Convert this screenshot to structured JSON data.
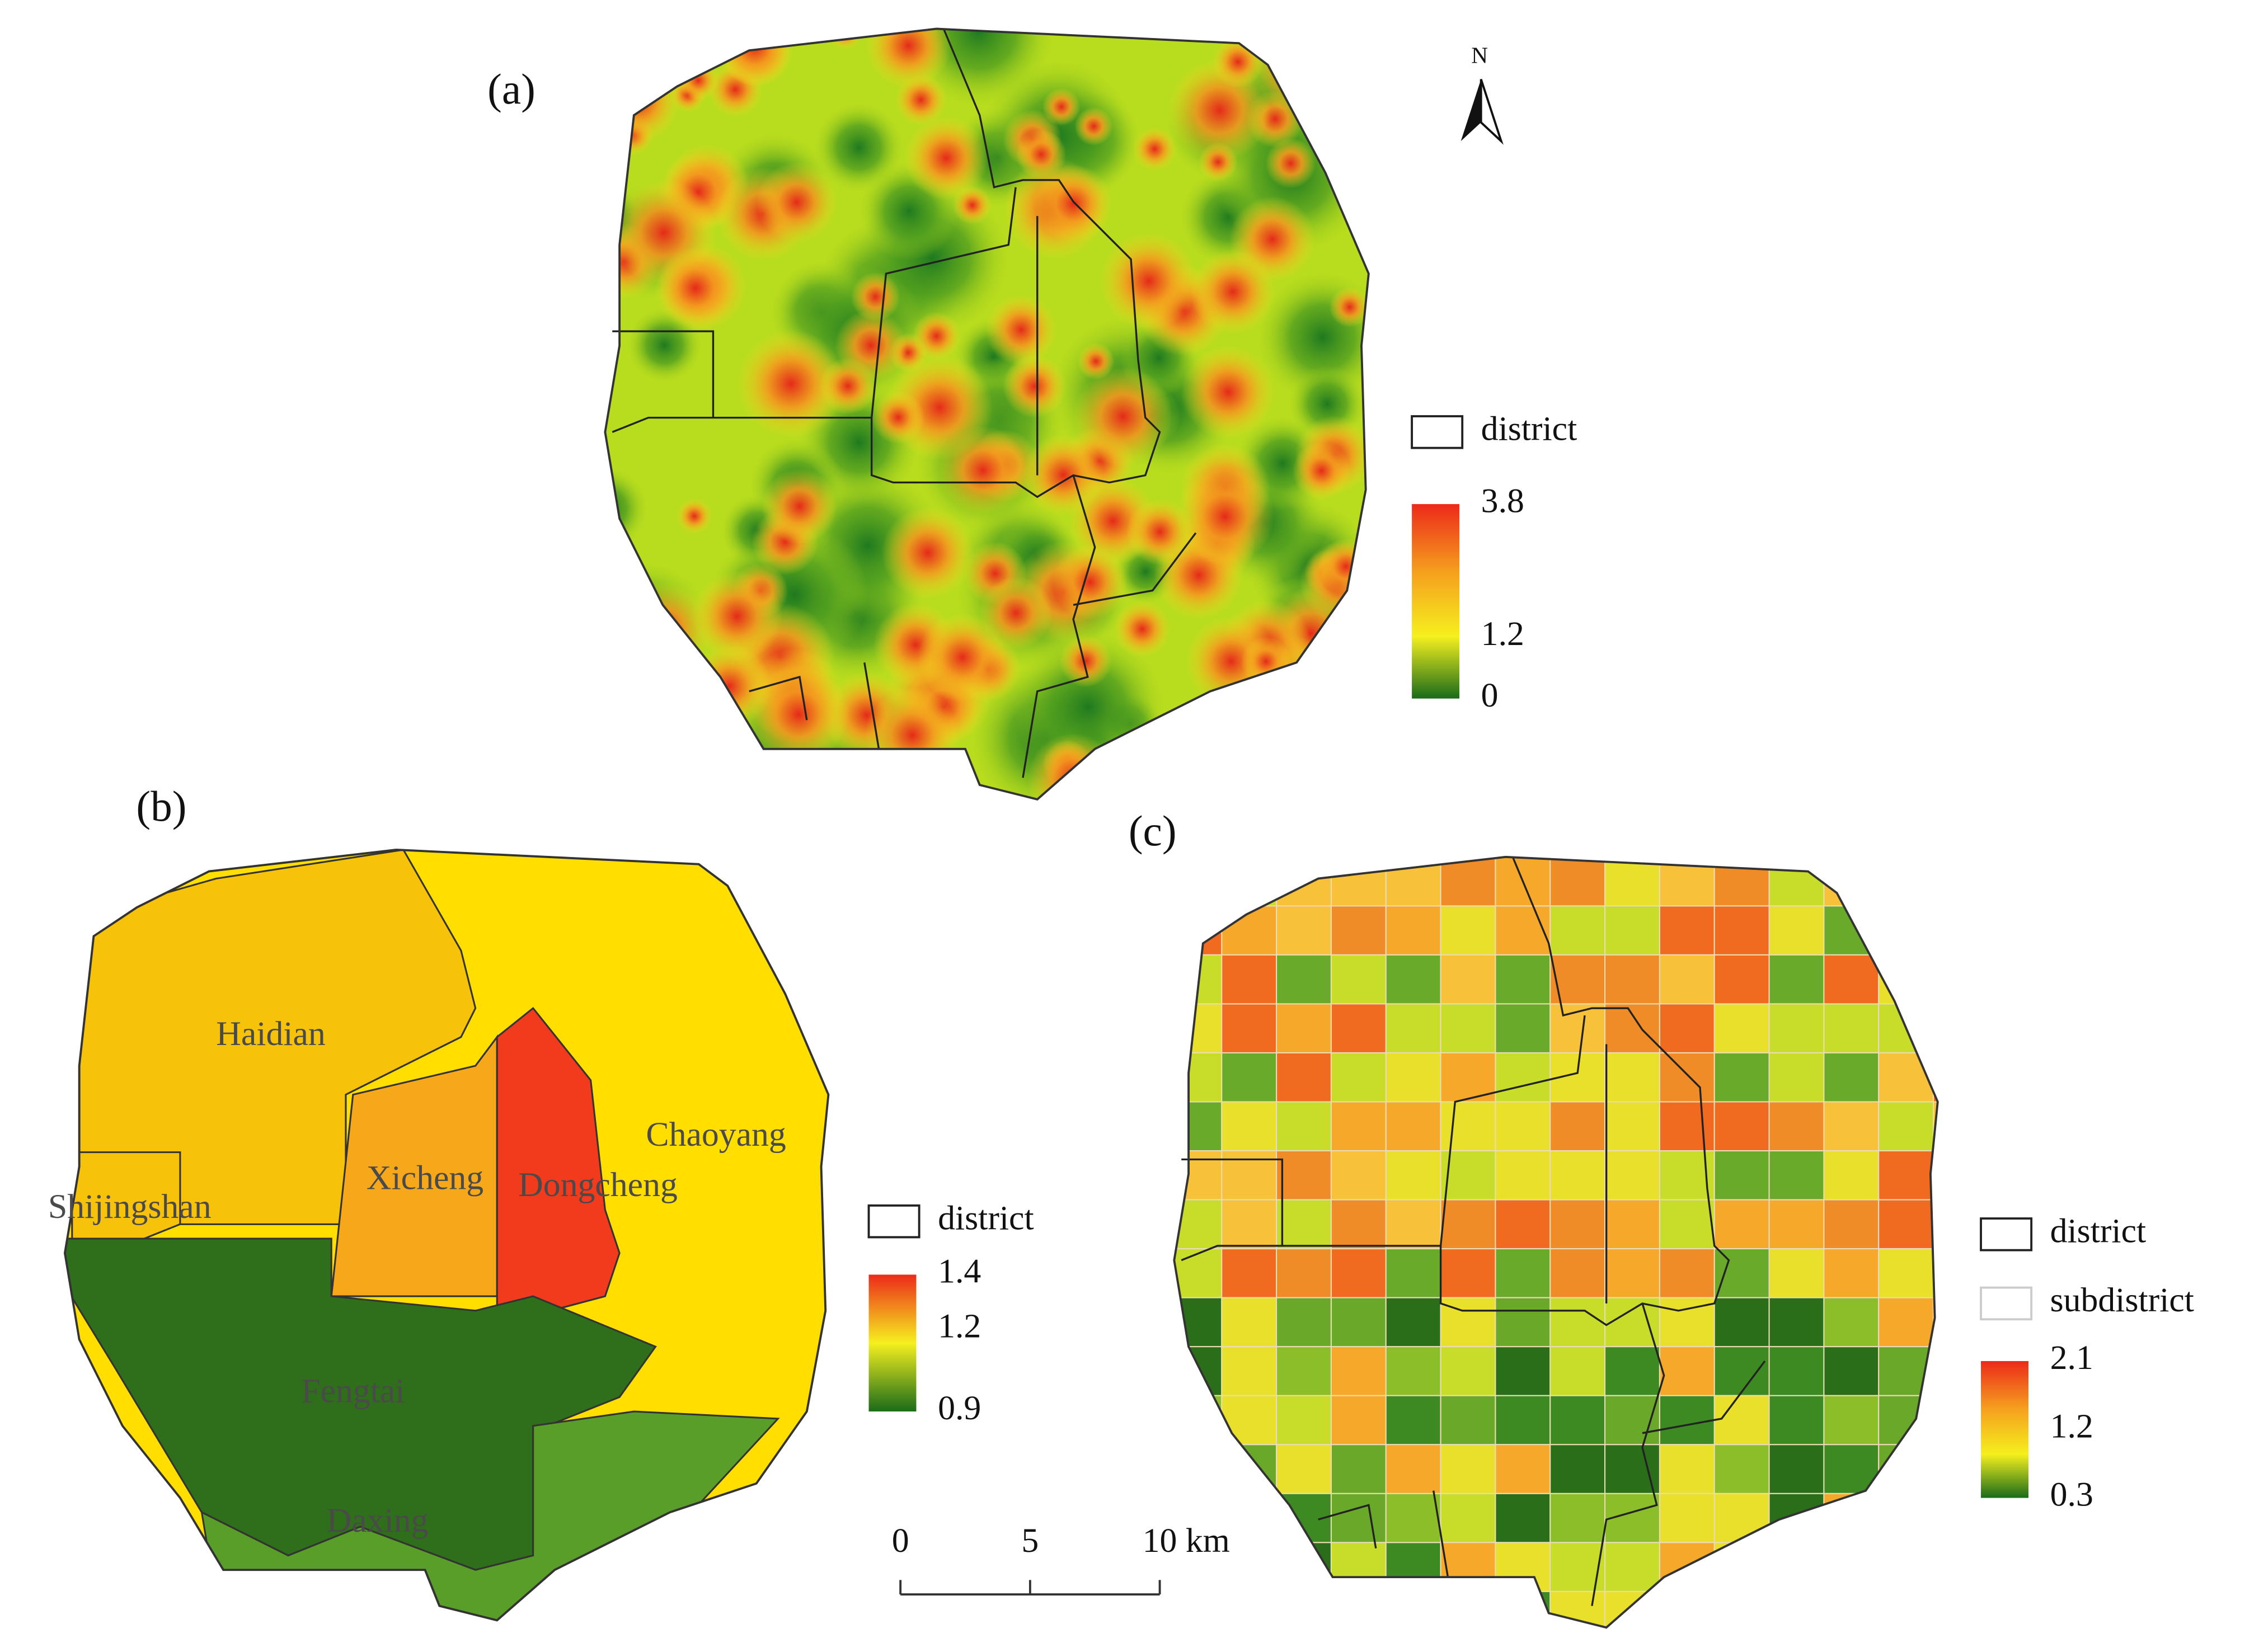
{
  "panels": [
    {
      "label": "(a)",
      "legend": {
        "items": [
          "district"
        ],
        "ticks": [
          0,
          1.2,
          3.8
        ]
      }
    },
    {
      "label": "(b)",
      "districts": [
        "Haidian",
        "Xicheng",
        "Dongcheng",
        "Chaoyang",
        "Shijingshan",
        "Fengtai",
        "Daxing"
      ],
      "legend": {
        "items": [
          "district"
        ],
        "ticks": [
          0.9,
          1.2,
          1.4
        ]
      }
    },
    {
      "label": "(c)",
      "legend": {
        "items": [
          "district",
          "subdistrict"
        ],
        "ticks": [
          0.3,
          1.2,
          2.1
        ]
      }
    }
  ],
  "north": "N",
  "scale_bar": {
    "ticks": [
      0,
      5,
      {
        "value": 10,
        "label": "10 km"
      }
    ]
  }
}
